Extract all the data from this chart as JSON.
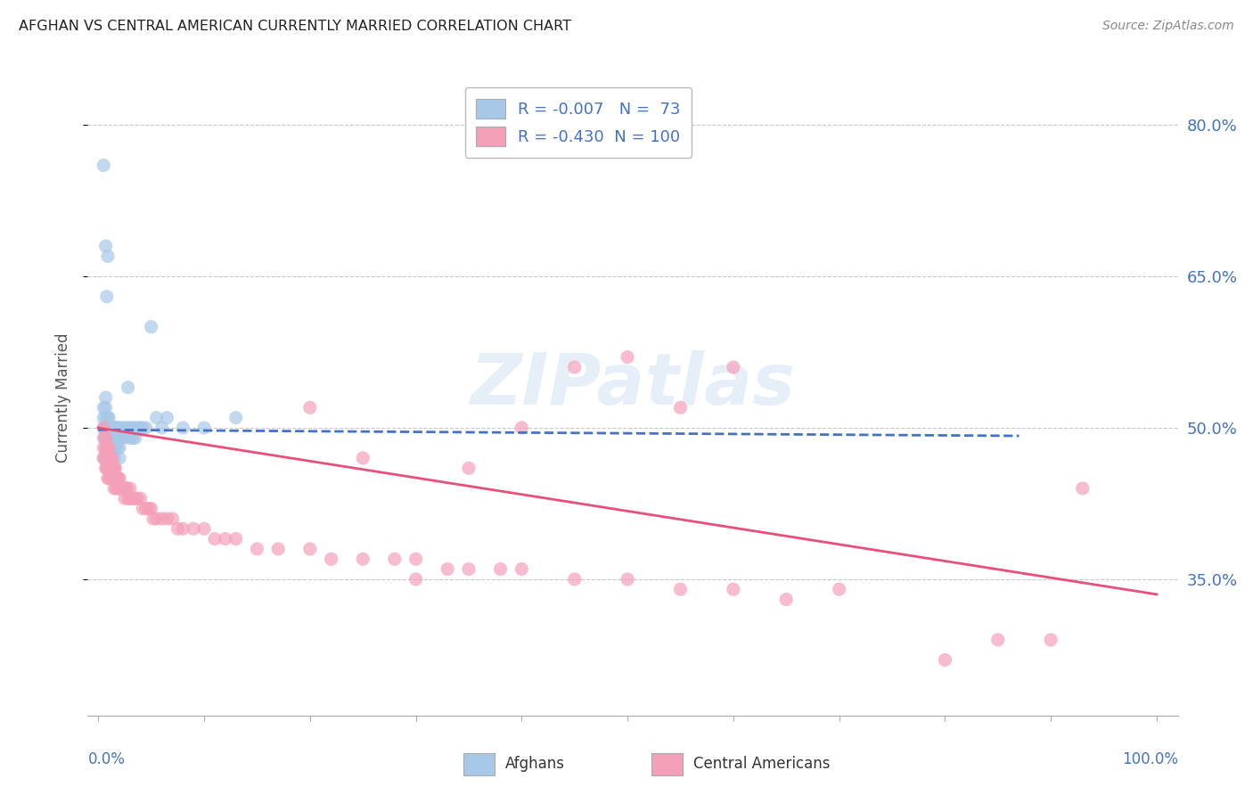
{
  "title": "AFGHAN VS CENTRAL AMERICAN CURRENTLY MARRIED CORRELATION CHART",
  "source": "Source: ZipAtlas.com",
  "ylabel": "Currently Married",
  "watermark": "ZIPatlas",
  "afghan_R": -0.007,
  "afghan_N": 73,
  "central_R": -0.43,
  "central_N": 100,
  "yticks": [
    0.35,
    0.5,
    0.65,
    0.8
  ],
  "ytick_labels": [
    "35.0%",
    "50.0%",
    "65.0%",
    "80.0%"
  ],
  "xtick_positions": [
    0.0,
    0.1,
    0.2,
    0.3,
    0.4,
    0.5,
    0.6,
    0.7,
    0.8,
    0.9,
    1.0
  ],
  "xlim": [
    -0.01,
    1.02
  ],
  "ylim": [
    0.215,
    0.845
  ],
  "afghan_color": "#a8c8e8",
  "afghan_line_color": "#4472c4",
  "central_color": "#f4a0b8",
  "central_line_color": "#e8507a",
  "legend_border_color": "#bbbbbb",
  "grid_color": "#c8c8c8",
  "title_color": "#222222",
  "axis_label_color": "#4472c4",
  "right_ytick_color": "#4472c4",
  "afghan_line_x0": 0.0,
  "afghan_line_x1": 0.87,
  "afghan_line_y0": 0.498,
  "afghan_line_y1": 0.492,
  "central_line_x0": 0.0,
  "central_line_x1": 1.0,
  "central_line_y0": 0.5,
  "central_line_y1": 0.335,
  "afghan_scatter_x": [
    0.005,
    0.005,
    0.005,
    0.005,
    0.005,
    0.007,
    0.007,
    0.007,
    0.007,
    0.007,
    0.007,
    0.008,
    0.008,
    0.008,
    0.008,
    0.009,
    0.009,
    0.009,
    0.01,
    0.01,
    0.01,
    0.01,
    0.01,
    0.01,
    0.012,
    0.012,
    0.012,
    0.012,
    0.013,
    0.013,
    0.013,
    0.015,
    0.015,
    0.015,
    0.015,
    0.015,
    0.016,
    0.016,
    0.016,
    0.018,
    0.018,
    0.018,
    0.02,
    0.02,
    0.02,
    0.02,
    0.022,
    0.022,
    0.025,
    0.025,
    0.027,
    0.028,
    0.03,
    0.03,
    0.032,
    0.033,
    0.035,
    0.035,
    0.038,
    0.04,
    0.042,
    0.045,
    0.05,
    0.055,
    0.06,
    0.065,
    0.08,
    0.1,
    0.13,
    0.005,
    0.007,
    0.008,
    0.009
  ],
  "afghan_scatter_y": [
    0.5,
    0.51,
    0.49,
    0.52,
    0.47,
    0.51,
    0.5,
    0.49,
    0.48,
    0.52,
    0.53,
    0.5,
    0.49,
    0.48,
    0.47,
    0.51,
    0.5,
    0.49,
    0.51,
    0.5,
    0.49,
    0.48,
    0.47,
    0.46,
    0.5,
    0.49,
    0.48,
    0.47,
    0.5,
    0.49,
    0.48,
    0.5,
    0.49,
    0.48,
    0.47,
    0.46,
    0.5,
    0.49,
    0.48,
    0.5,
    0.49,
    0.48,
    0.5,
    0.49,
    0.48,
    0.47,
    0.5,
    0.49,
    0.5,
    0.49,
    0.5,
    0.54,
    0.5,
    0.49,
    0.5,
    0.49,
    0.5,
    0.49,
    0.5,
    0.5,
    0.5,
    0.5,
    0.6,
    0.51,
    0.5,
    0.51,
    0.5,
    0.5,
    0.51,
    0.76,
    0.68,
    0.63,
    0.67
  ],
  "central_scatter_x": [
    0.005,
    0.005,
    0.005,
    0.006,
    0.007,
    0.007,
    0.007,
    0.008,
    0.008,
    0.008,
    0.009,
    0.009,
    0.009,
    0.01,
    0.01,
    0.01,
    0.01,
    0.011,
    0.011,
    0.012,
    0.012,
    0.012,
    0.013,
    0.013,
    0.013,
    0.014,
    0.014,
    0.015,
    0.015,
    0.015,
    0.016,
    0.016,
    0.017,
    0.017,
    0.018,
    0.018,
    0.019,
    0.02,
    0.02,
    0.021,
    0.022,
    0.023,
    0.025,
    0.025,
    0.026,
    0.027,
    0.028,
    0.03,
    0.03,
    0.032,
    0.033,
    0.035,
    0.037,
    0.04,
    0.042,
    0.045,
    0.048,
    0.05,
    0.052,
    0.055,
    0.06,
    0.065,
    0.07,
    0.075,
    0.08,
    0.09,
    0.1,
    0.11,
    0.12,
    0.13,
    0.15,
    0.17,
    0.2,
    0.22,
    0.25,
    0.28,
    0.3,
    0.33,
    0.35,
    0.38,
    0.4,
    0.45,
    0.5,
    0.55,
    0.6,
    0.65,
    0.7,
    0.5,
    0.4,
    0.55,
    0.6,
    0.8,
    0.85,
    0.9,
    0.93,
    0.3,
    0.35,
    0.2,
    0.25,
    0.45
  ],
  "central_scatter_y": [
    0.5,
    0.48,
    0.47,
    0.49,
    0.49,
    0.47,
    0.46,
    0.48,
    0.47,
    0.46,
    0.48,
    0.46,
    0.45,
    0.48,
    0.47,
    0.46,
    0.45,
    0.47,
    0.46,
    0.47,
    0.46,
    0.45,
    0.47,
    0.46,
    0.45,
    0.46,
    0.45,
    0.46,
    0.45,
    0.44,
    0.46,
    0.45,
    0.45,
    0.44,
    0.45,
    0.44,
    0.45,
    0.45,
    0.44,
    0.44,
    0.44,
    0.44,
    0.44,
    0.43,
    0.44,
    0.44,
    0.43,
    0.44,
    0.43,
    0.43,
    0.43,
    0.43,
    0.43,
    0.43,
    0.42,
    0.42,
    0.42,
    0.42,
    0.41,
    0.41,
    0.41,
    0.41,
    0.41,
    0.4,
    0.4,
    0.4,
    0.4,
    0.39,
    0.39,
    0.39,
    0.38,
    0.38,
    0.38,
    0.37,
    0.37,
    0.37,
    0.37,
    0.36,
    0.36,
    0.36,
    0.36,
    0.35,
    0.35,
    0.34,
    0.34,
    0.33,
    0.34,
    0.57,
    0.5,
    0.52,
    0.56,
    0.27,
    0.29,
    0.29,
    0.44,
    0.35,
    0.46,
    0.52,
    0.47,
    0.56
  ]
}
